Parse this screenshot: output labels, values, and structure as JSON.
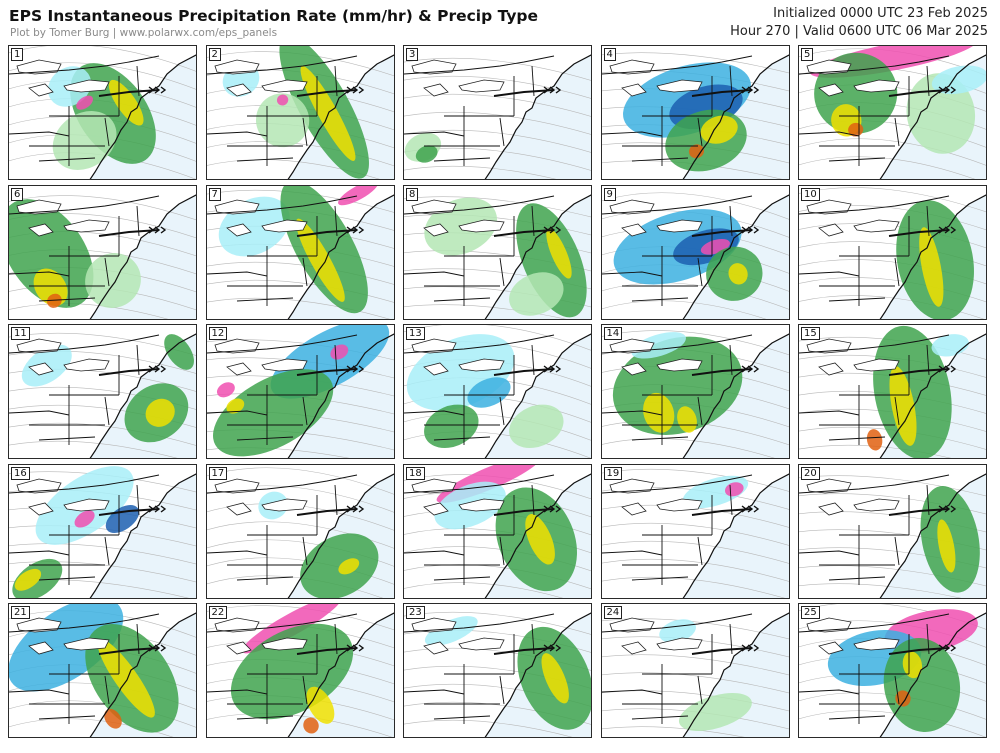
{
  "header": {
    "title": "EPS Instantaneous Precipitation Rate (mm/hr) & Precip Type",
    "credit": "Plot by Tomer Burg | www.polarwx.com/eps_panels",
    "initialized": "Initialized 0000 UTC 23 Feb 2025",
    "valid": "Hour 270 | Valid 0600 UTC 06 Mar 2025"
  },
  "colors": {
    "rain_light": "#b4e6b4",
    "rain_moderate": "#3fa34d",
    "rain_heavy": "#1e6f2c",
    "rain_intense": "#f0e000",
    "rain_extreme": "#e06010",
    "snow_light": "#a8eef8",
    "snow_moderate": "#3cb0e0",
    "snow_heavy": "#1c5fb0",
    "mix": "#f04fb0",
    "ocean": "#e9f4fb"
  },
  "panels": [
    {
      "id": "1",
      "type": "frontal",
      "blobs": [
        [
          "rain_moderate",
          0.55,
          0.5,
          0.18,
          0.42
        ],
        [
          "rain_intense",
          0.62,
          0.42,
          0.05,
          0.2
        ],
        [
          "rain_light",
          0.4,
          0.7,
          0.18,
          0.2
        ],
        [
          "snow_light",
          0.32,
          0.3,
          0.12,
          0.14
        ],
        [
          "mix",
          0.4,
          0.42,
          0.05,
          0.04
        ]
      ]
    },
    {
      "id": "2",
      "type": "frontal",
      "blobs": [
        [
          "rain_moderate",
          0.62,
          0.45,
          0.13,
          0.6
        ],
        [
          "rain_intense",
          0.64,
          0.5,
          0.05,
          0.4
        ],
        [
          "snow_light",
          0.18,
          0.25,
          0.1,
          0.12
        ],
        [
          "rain_light",
          0.4,
          0.55,
          0.14,
          0.2
        ],
        [
          "mix",
          0.4,
          0.4,
          0.03,
          0.04
        ]
      ]
    },
    {
      "id": "3",
      "type": "quiet",
      "blobs": [
        [
          "rain_light",
          0.1,
          0.75,
          0.1,
          0.1
        ],
        [
          "rain_moderate",
          0.12,
          0.8,
          0.06,
          0.06
        ]
      ]
    },
    {
      "id": "4",
      "type": "coastal",
      "blobs": [
        [
          "snow_moderate",
          0.45,
          0.4,
          0.35,
          0.25
        ],
        [
          "snow_heavy",
          0.55,
          0.45,
          0.2,
          0.15
        ],
        [
          "rain_moderate",
          0.55,
          0.7,
          0.22,
          0.22
        ],
        [
          "rain_intense",
          0.62,
          0.62,
          0.1,
          0.1
        ],
        [
          "rain_extreme",
          0.5,
          0.78,
          0.04,
          0.05
        ]
      ]
    },
    {
      "id": "5",
      "type": "inland",
      "blobs": [
        [
          "mix",
          0.5,
          0.08,
          0.45,
          0.1
        ],
        [
          "rain_moderate",
          0.3,
          0.35,
          0.22,
          0.3
        ],
        [
          "rain_intense",
          0.25,
          0.55,
          0.08,
          0.12
        ],
        [
          "rain_extreme",
          0.3,
          0.62,
          0.04,
          0.05
        ],
        [
          "rain_light",
          0.75,
          0.5,
          0.18,
          0.3
        ],
        [
          "snow_light",
          0.85,
          0.25,
          0.15,
          0.1
        ]
      ]
    },
    {
      "id": "6",
      "type": "southern",
      "blobs": [
        [
          "rain_moderate",
          0.2,
          0.5,
          0.2,
          0.45
        ],
        [
          "rain_intense",
          0.22,
          0.75,
          0.08,
          0.15
        ],
        [
          "rain_extreme",
          0.24,
          0.85,
          0.04,
          0.05
        ],
        [
          "rain_light",
          0.55,
          0.7,
          0.15,
          0.2
        ]
      ]
    },
    {
      "id": "7",
      "type": "frontal",
      "blobs": [
        [
          "snow_light",
          0.25,
          0.3,
          0.2,
          0.2
        ],
        [
          "rain_moderate",
          0.62,
          0.45,
          0.15,
          0.55
        ],
        [
          "rain_intense",
          0.6,
          0.55,
          0.05,
          0.35
        ],
        [
          "mix",
          0.8,
          0.05,
          0.12,
          0.05
        ]
      ]
    },
    {
      "id": "8",
      "type": "offshore",
      "blobs": [
        [
          "rain_light",
          0.3,
          0.3,
          0.2,
          0.2
        ],
        [
          "rain_moderate",
          0.78,
          0.55,
          0.15,
          0.45
        ],
        [
          "rain_intense",
          0.82,
          0.5,
          0.04,
          0.2
        ],
        [
          "rain_light",
          0.7,
          0.8,
          0.15,
          0.15
        ]
      ]
    },
    {
      "id": "9",
      "type": "coastal",
      "blobs": [
        [
          "snow_moderate",
          0.4,
          0.45,
          0.35,
          0.25
        ],
        [
          "snow_heavy",
          0.55,
          0.45,
          0.18,
          0.12
        ],
        [
          "mix",
          0.6,
          0.45,
          0.08,
          0.05
        ],
        [
          "rain_moderate",
          0.7,
          0.65,
          0.15,
          0.2
        ],
        [
          "rain_intense",
          0.72,
          0.65,
          0.05,
          0.08
        ]
      ]
    },
    {
      "id": "10",
      "type": "offshore",
      "blobs": [
        [
          "rain_moderate",
          0.72,
          0.55,
          0.2,
          0.45
        ],
        [
          "rain_intense",
          0.7,
          0.6,
          0.05,
          0.3
        ]
      ]
    },
    {
      "id": "11",
      "type": "offshore",
      "blobs": [
        [
          "snow_light",
          0.2,
          0.3,
          0.15,
          0.12
        ],
        [
          "rain_moderate",
          0.78,
          0.65,
          0.18,
          0.2
        ],
        [
          "rain_intense",
          0.8,
          0.65,
          0.08,
          0.1
        ],
        [
          "rain_moderate",
          0.9,
          0.2,
          0.06,
          0.15
        ]
      ]
    },
    {
      "id": "12",
      "type": "frontal",
      "blobs": [
        [
          "snow_moderate",
          0.65,
          0.25,
          0.35,
          0.2
        ],
        [
          "mix",
          0.1,
          0.48,
          0.05,
          0.05
        ],
        [
          "mix",
          0.7,
          0.2,
          0.05,
          0.05
        ],
        [
          "rain_moderate",
          0.35,
          0.65,
          0.35,
          0.25
        ],
        [
          "rain_intense",
          0.15,
          0.6,
          0.05,
          0.05
        ]
      ]
    },
    {
      "id": "13",
      "type": "frontal",
      "blobs": [
        [
          "snow_light",
          0.3,
          0.35,
          0.3,
          0.25
        ],
        [
          "snow_moderate",
          0.45,
          0.5,
          0.12,
          0.1
        ],
        [
          "rain_moderate",
          0.25,
          0.75,
          0.15,
          0.15
        ],
        [
          "rain_light",
          0.7,
          0.75,
          0.15,
          0.15
        ]
      ]
    },
    {
      "id": "14",
      "type": "inland",
      "blobs": [
        [
          "rain_moderate",
          0.4,
          0.45,
          0.35,
          0.35
        ],
        [
          "rain_intense",
          0.3,
          0.65,
          0.08,
          0.15
        ],
        [
          "rain_intense",
          0.45,
          0.7,
          0.05,
          0.1
        ],
        [
          "snow_light",
          0.3,
          0.15,
          0.15,
          0.08
        ]
      ]
    },
    {
      "id": "15",
      "type": "frontal",
      "blobs": [
        [
          "rain_moderate",
          0.6,
          0.5,
          0.2,
          0.5
        ],
        [
          "rain_intense",
          0.55,
          0.6,
          0.06,
          0.3
        ],
        [
          "rain_extreme",
          0.4,
          0.85,
          0.04,
          0.08
        ],
        [
          "snow_light",
          0.8,
          0.15,
          0.1,
          0.08
        ]
      ]
    },
    {
      "id": "16",
      "type": "coastal",
      "blobs": [
        [
          "snow_light",
          0.4,
          0.3,
          0.3,
          0.2
        ],
        [
          "snow_heavy",
          0.6,
          0.4,
          0.1,
          0.08
        ],
        [
          "mix",
          0.4,
          0.4,
          0.06,
          0.05
        ],
        [
          "rain_moderate",
          0.15,
          0.85,
          0.15,
          0.12
        ],
        [
          "rain_intense",
          0.1,
          0.85,
          0.08,
          0.06
        ]
      ]
    },
    {
      "id": "17",
      "type": "offshore",
      "blobs": [
        [
          "rain_moderate",
          0.7,
          0.75,
          0.22,
          0.22
        ],
        [
          "rain_intense",
          0.75,
          0.75,
          0.06,
          0.05
        ],
        [
          "snow_light",
          0.35,
          0.3,
          0.08,
          0.1
        ]
      ]
    },
    {
      "id": "18",
      "type": "frontal",
      "blobs": [
        [
          "mix",
          0.45,
          0.1,
          0.3,
          0.08
        ],
        [
          "snow_light",
          0.35,
          0.3,
          0.2,
          0.15
        ],
        [
          "rain_moderate",
          0.7,
          0.55,
          0.2,
          0.4
        ],
        [
          "rain_intense",
          0.72,
          0.55,
          0.06,
          0.2
        ]
      ]
    },
    {
      "id": "19",
      "type": "quiet",
      "blobs": [
        [
          "snow_light",
          0.6,
          0.2,
          0.18,
          0.1
        ],
        [
          "mix",
          0.7,
          0.18,
          0.05,
          0.05
        ]
      ]
    },
    {
      "id": "20",
      "type": "offshore",
      "blobs": [
        [
          "rain_moderate",
          0.8,
          0.55,
          0.15,
          0.4
        ],
        [
          "rain_intense",
          0.78,
          0.6,
          0.04,
          0.2
        ]
      ]
    },
    {
      "id": "21",
      "type": "frontal",
      "blobs": [
        [
          "snow_moderate",
          0.3,
          0.3,
          0.35,
          0.25
        ],
        [
          "rain_moderate",
          0.65,
          0.55,
          0.2,
          0.45
        ],
        [
          "rain_intense",
          0.62,
          0.55,
          0.06,
          0.35
        ],
        [
          "rain_extreme",
          0.55,
          0.85,
          0.04,
          0.08
        ]
      ]
    },
    {
      "id": "22",
      "type": "inland",
      "blobs": [
        [
          "mix",
          0.45,
          0.15,
          0.3,
          0.08
        ],
        [
          "rain_moderate",
          0.45,
          0.5,
          0.35,
          0.3
        ],
        [
          "rain_intense",
          0.6,
          0.75,
          0.06,
          0.15
        ],
        [
          "rain_extreme",
          0.55,
          0.9,
          0.04,
          0.06
        ]
      ]
    },
    {
      "id": "23",
      "type": "offshore",
      "blobs": [
        [
          "rain_moderate",
          0.8,
          0.55,
          0.18,
          0.4
        ],
        [
          "rain_intense",
          0.8,
          0.55,
          0.05,
          0.2
        ],
        [
          "snow_light",
          0.25,
          0.2,
          0.15,
          0.08
        ]
      ]
    },
    {
      "id": "24",
      "type": "quiet",
      "blobs": [
        [
          "rain_light",
          0.6,
          0.8,
          0.2,
          0.12
        ],
        [
          "snow_light",
          0.4,
          0.2,
          0.1,
          0.08
        ]
      ]
    },
    {
      "id": "25",
      "type": "coastal",
      "blobs": [
        [
          "mix",
          0.7,
          0.2,
          0.25,
          0.15
        ],
        [
          "snow_moderate",
          0.4,
          0.4,
          0.25,
          0.2
        ],
        [
          "rain_moderate",
          0.65,
          0.6,
          0.2,
          0.35
        ],
        [
          "rain_intense",
          0.6,
          0.45,
          0.05,
          0.1
        ],
        [
          "rain_extreme",
          0.55,
          0.7,
          0.04,
          0.06
        ]
      ]
    }
  ]
}
